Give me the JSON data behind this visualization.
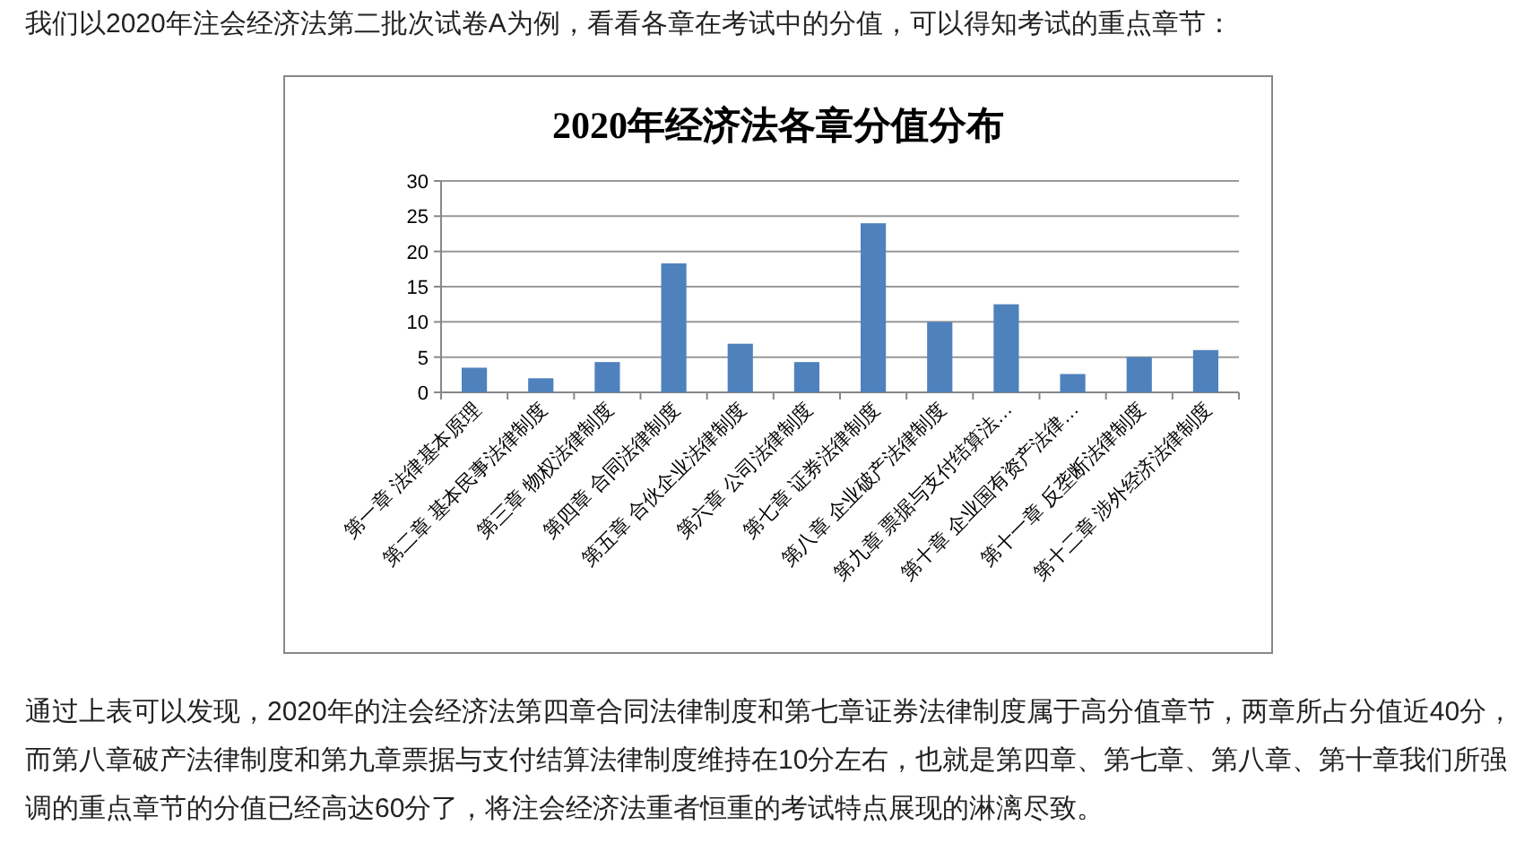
{
  "chart_data": {
    "type": "bar",
    "title": "2020年经济法各章分值分布",
    "categories": [
      "第一章 法律基本原理",
      "第二章 基本民事法律制度",
      "第三章 物权法律制度",
      "第四章 合同法律制度",
      "第五章 合伙企业法律制度",
      "第六章 公司法律制度",
      "第七章 证券法律制度",
      "第八章 企业破产法律制度",
      "第九章 票据与支付结算法…",
      "第十章 企业国有资产法律…",
      "第十一章 反垄断法律制度",
      "第十二章 涉外经济法律制度"
    ],
    "values": [
      3.5,
      2,
      4.3,
      18.3,
      6.9,
      4.3,
      24,
      10,
      12.5,
      2.6,
      5,
      6
    ],
    "color": "#4f81bd",
    "ylim": [
      0,
      30
    ],
    "yticks": [
      0,
      5,
      10,
      15,
      20,
      25,
      30
    ],
    "grid": "y",
    "annotations": [
      "我们以2020年注会经济法第二批次试卷A为例，看看各章在考试中的分值，可以得知考试的重点章节：",
      "通过上表可以发现，2020年的注会经济法第四章合同法律制度和第七章证券法律制度属于高分值章节，两章所占分值近40分，而第八章破产法律制度和第九章票据与支付结算法律制度维持在10分左右，也就是第四章、第七章、第八章、第十章我们所强调的重点章节的分值已经高达60分了，将注会经济法重者恒重的考试特点展现的淋漓尽致。"
    ]
  }
}
